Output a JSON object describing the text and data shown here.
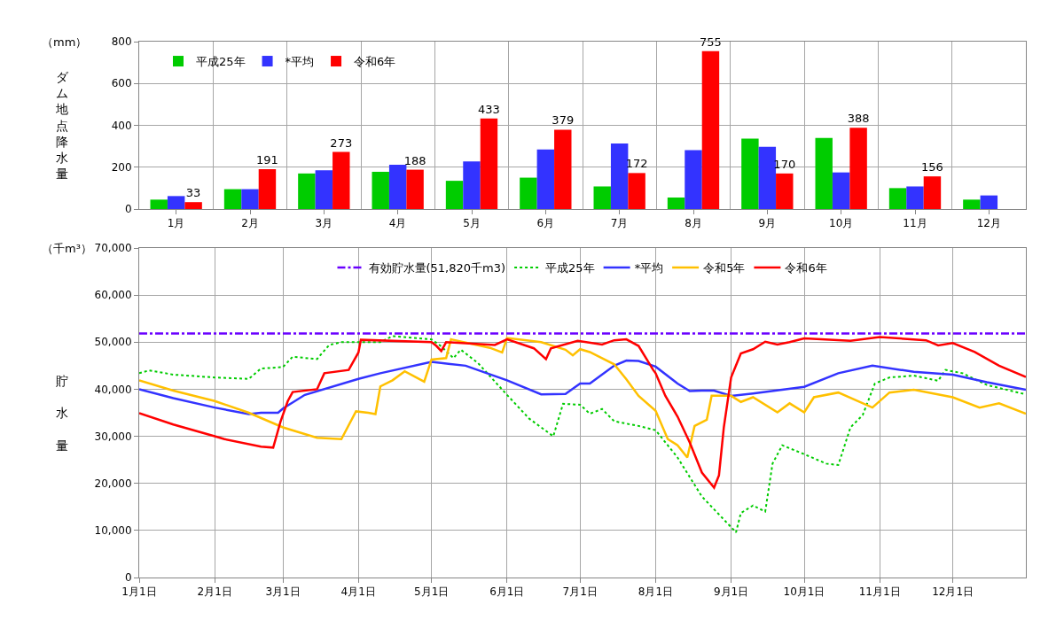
{
  "chart_data": [
    {
      "type": "bar",
      "ylabel": "ダム地点降水量",
      "annotations": [
        "（mm）"
      ],
      "categories": [
        "1月",
        "2月",
        "3月",
        "4月",
        "5月",
        "6月",
        "7月",
        "8月",
        "9月",
        "10月",
        "11月",
        "12月"
      ],
      "series": [
        {
          "name": "平成25年",
          "color": "#00cc00",
          "values": [
            45,
            95,
            170,
            178,
            135,
            150,
            108,
            55,
            337,
            340,
            100,
            45
          ]
        },
        {
          "name": "*平均",
          "color": "#3333ff",
          "values": [
            62,
            95,
            185,
            212,
            228,
            285,
            313,
            282,
            297,
            175,
            108,
            65
          ]
        },
        {
          "name": "令和6年",
          "color": "#ff0000",
          "values": [
            33,
            191,
            273,
            188,
            433,
            379,
            172,
            755,
            170,
            388,
            156,
            null
          ],
          "value_labels": [
            "33",
            "191",
            "273",
            "188",
            "433",
            "379",
            "172",
            "755",
            "170",
            "388",
            "156",
            null
          ]
        }
      ],
      "ylim": [
        0,
        800
      ],
      "yticks": [
        0,
        200,
        400,
        600,
        800
      ],
      "grid": true,
      "legend": "top left"
    },
    {
      "type": "line",
      "ylabel": "貯水量",
      "annotations": [
        "（千m³）"
      ],
      "ylim": [
        0,
        70000
      ],
      "yticks": [
        {
          "value": 0,
          "label": "0"
        },
        {
          "value": 10000,
          "label": "10,000"
        },
        {
          "value": 20000,
          "label": "20,000"
        },
        {
          "value": 30000,
          "label": "30,000"
        },
        {
          "value": 40000,
          "label": "40,000"
        },
        {
          "value": 50000,
          "label": "50,000"
        },
        {
          "value": 60000,
          "label": "60,000"
        },
        {
          "value": 70000,
          "label": "70,000"
        }
      ],
      "xlim": [
        "--01-01",
        "--12-31"
      ],
      "xticks": [
        {
          "value": "--01-01",
          "label": "1月1日"
        },
        {
          "value": "--02-01",
          "label": "2月1日"
        },
        {
          "value": "--03-01",
          "label": "3月1日"
        },
        {
          "value": "--04-01",
          "label": "4月1日"
        },
        {
          "value": "--05-01",
          "label": "5月1日"
        },
        {
          "value": "--06-01",
          "label": "6月1日"
        },
        {
          "value": "--07-01",
          "label": "7月1日"
        },
        {
          "value": "--08-01",
          "label": "8月1日"
        },
        {
          "value": "--09-01",
          "label": "9月1日"
        },
        {
          "value": "--10-01",
          "label": "10月1日"
        },
        {
          "value": "--11-01",
          "label": "11月1日"
        },
        {
          "value": "--12-01",
          "label": "12月1日"
        }
      ],
      "ref_lines": [
        {
          "axis": "y",
          "value": 51820,
          "label": "有効貯水量(51,820千m3)",
          "color": "#6a00ff",
          "line_style": "dashdot"
        }
      ],
      "series": [
        {
          "name": "平成25年",
          "color": "#00cc00",
          "line_style": "dotted",
          "x": [
            "--01-01",
            "--01-05",
            "--01-15",
            "--02-01",
            "--02-15",
            "--02-20",
            "--03-01",
            "--03-05",
            "--03-15",
            "--03-20",
            "--03-25",
            "--04-10",
            "--04-15",
            "--05-01",
            "--05-05",
            "--05-10",
            "--05-13",
            "--05-20",
            "--06-01",
            "--06-10",
            "--06-20",
            "--06-24",
            "--07-01",
            "--07-05",
            "--07-10",
            "--07-15",
            "--07-25",
            "--08-01",
            "--08-10",
            "--08-20",
            "--08-27",
            "--09-03",
            "--09-05",
            "--09-10",
            "--09-15",
            "--09-18",
            "--09-22",
            "--10-01",
            "--10-10",
            "--10-15",
            "--10-20",
            "--10-25",
            "--10-30",
            "--11-05",
            "--11-15",
            "--11-25",
            "--11-28",
            "--12-05",
            "--12-15",
            "--12-31"
          ],
          "values": [
            43400,
            44000,
            43100,
            42500,
            42200,
            44400,
            44700,
            46900,
            46400,
            49400,
            50000,
            50000,
            51300,
            50600,
            49100,
            46600,
            48400,
            45600,
            38800,
            33800,
            30000,
            36900,
            36700,
            34800,
            35800,
            33200,
            32200,
            31300,
            25500,
            17200,
            13400,
            9600,
            13700,
            15300,
            14000,
            24200,
            28100,
            26200,
            24200,
            23900,
            31900,
            34500,
            41200,
            42500,
            42900,
            41800,
            44100,
            43400,
            40900,
            38900
          ]
        },
        {
          "name": "*平均",
          "color": "#3333ff",
          "line_style": "solid",
          "x": [
            "--01-01",
            "--01-15",
            "--02-01",
            "--02-15",
            "--02-20",
            "--02-27",
            "--03-01",
            "--03-10",
            "--04-01",
            "--04-10",
            "--05-01",
            "--05-15",
            "--06-01",
            "--06-15",
            "--06-25",
            "--07-01",
            "--07-05",
            "--07-15",
            "--07-20",
            "--07-25",
            "--08-01",
            "--08-10",
            "--08-15",
            "--08-20",
            "--08-25",
            "--09-01",
            "--09-10",
            "--10-01",
            "--10-15",
            "--10-29",
            "--11-15",
            "--12-01",
            "--12-15",
            "--12-31"
          ],
          "values": [
            40000,
            38100,
            36100,
            34700,
            35000,
            35000,
            35900,
            38800,
            42200,
            43400,
            45800,
            45000,
            41900,
            38900,
            39000,
            41200,
            41200,
            45000,
            46100,
            46000,
            44800,
            41200,
            39600,
            39700,
            39700,
            38600,
            39100,
            40500,
            43400,
            45000,
            43700,
            43100,
            41500,
            39900
          ]
        },
        {
          "name": "令和5年",
          "color": "#ffc000",
          "line_style": "solid",
          "x": [
            "--01-01",
            "--01-15",
            "--02-01",
            "--02-15",
            "--03-01",
            "--03-15",
            "--03-25",
            "--03-31",
            "--04-05",
            "--04-08",
            "--04-10",
            "--04-15",
            "--04-20",
            "--04-28",
            "--05-01",
            "--05-07",
            "--05-09",
            "--05-25",
            "--05-30",
            "--06-01",
            "--06-15",
            "--06-25",
            "--06-28",
            "--07-01",
            "--07-05",
            "--07-10",
            "--07-15",
            "--07-20",
            "--07-25",
            "--08-01",
            "--08-06",
            "--08-10",
            "--08-14",
            "--08-17",
            "--08-22",
            "--08-24",
            "--09-01",
            "--09-05",
            "--09-10",
            "--09-20",
            "--09-25",
            "--10-01",
            "--10-05",
            "--10-15",
            "--10-29",
            "--11-05",
            "--11-15",
            "--12-01",
            "--12-12",
            "--12-20",
            "--12-31"
          ],
          "values": [
            41900,
            39700,
            37500,
            35000,
            31900,
            29700,
            29400,
            35300,
            35000,
            34700,
            40600,
            41900,
            43800,
            41600,
            46300,
            46600,
            50600,
            48800,
            47800,
            50900,
            50000,
            48400,
            47200,
            48500,
            47900,
            46600,
            45300,
            42100,
            38600,
            35400,
            29400,
            28100,
            25500,
            32200,
            33500,
            38600,
            38600,
            37300,
            38300,
            35100,
            37000,
            35100,
            38300,
            39300,
            36100,
            39300,
            39900,
            38300,
            36100,
            37000,
            34800
          ]
        },
        {
          "name": "令和6年",
          "color": "#ff0000",
          "line_style": "solid",
          "x": [
            "--01-01",
            "--01-15",
            "--02-01",
            "--02-05",
            "--02-20",
            "--02-25",
            "--02-28",
            "--03-03",
            "--03-05",
            "--03-15",
            "--03-18",
            "--03-28",
            "--04-01",
            "--04-02",
            "--05-01",
            "--05-03",
            "--05-05",
            "--05-07",
            "--05-27",
            "--06-01",
            "--06-12",
            "--06-17",
            "--06-19",
            "--06-30",
            "--07-10",
            "--07-15",
            "--07-20",
            "--07-25",
            "--07-31",
            "--08-01",
            "--08-05",
            "--08-10",
            "--08-15",
            "--08-20",
            "--08-25",
            "--08-27",
            "--08-29",
            "--09-01",
            "--09-05",
            "--09-10",
            "--09-15",
            "--09-20",
            "--09-25",
            "--10-01",
            "--10-20",
            "--11-01",
            "--11-20",
            "--11-25",
            "--12-01",
            "--12-10",
            "--12-20",
            "--12-31"
          ],
          "values": [
            34900,
            32500,
            30000,
            29400,
            27800,
            27600,
            33100,
            37500,
            39400,
            40000,
            43400,
            44100,
            47800,
            50500,
            50000,
            49200,
            48100,
            50000,
            49400,
            50600,
            48700,
            46400,
            48700,
            50300,
            49500,
            50400,
            50600,
            49200,
            44100,
            43400,
            38600,
            34200,
            28700,
            22300,
            19100,
            21700,
            31900,
            42500,
            47600,
            48500,
            50100,
            49500,
            50000,
            50800,
            50300,
            51100,
            50400,
            49300,
            49800,
            47900,
            45000,
            42600
          ]
        }
      ],
      "grid": true,
      "legend": "top"
    }
  ]
}
